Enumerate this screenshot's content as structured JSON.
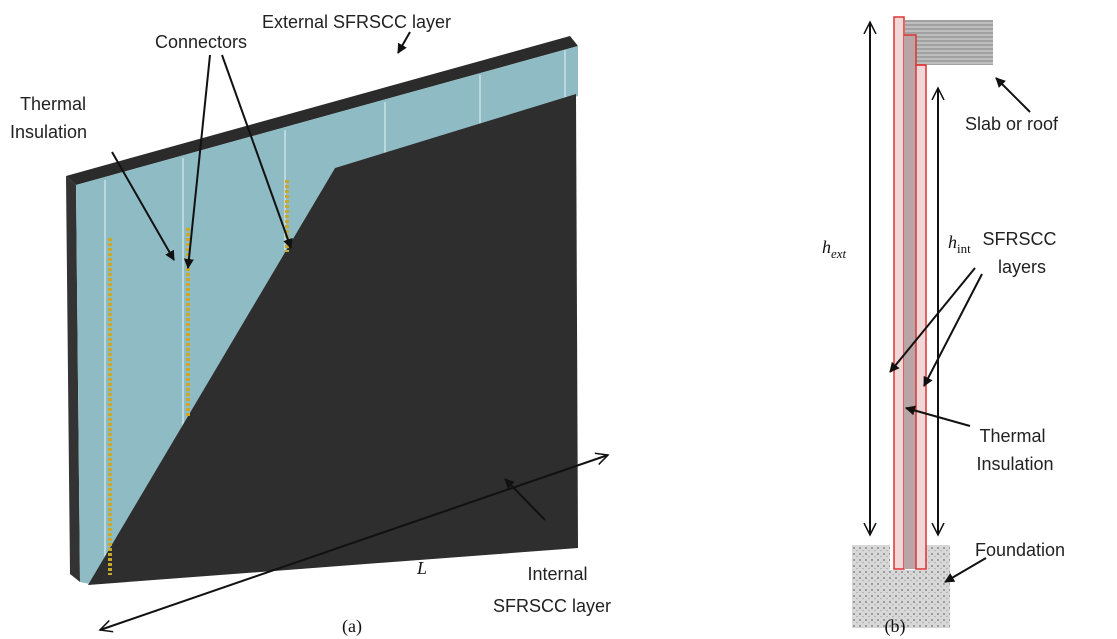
{
  "panel_a": {
    "labels": {
      "external_layer": "External SFRSCC layer",
      "connectors": "Connectors",
      "thermal_insulation": [
        "Thermal",
        "Insulation"
      ],
      "internal_layer": [
        "Internal",
        "SFRSCC layer"
      ],
      "length": "L"
    },
    "caption": "(a)"
  },
  "panel_b": {
    "labels": {
      "slab": "Slab or roof",
      "h_ext": {
        "symbol": "h",
        "subscript": "ext"
      },
      "h_int": {
        "symbol": "h",
        "subscript": "int"
      },
      "sfrscc_layers": [
        "SFRSCC",
        "layers"
      ],
      "thermal_insulation": [
        "Thermal",
        "Insulation"
      ],
      "foundation": "Foundation"
    },
    "caption": "(b)"
  }
}
